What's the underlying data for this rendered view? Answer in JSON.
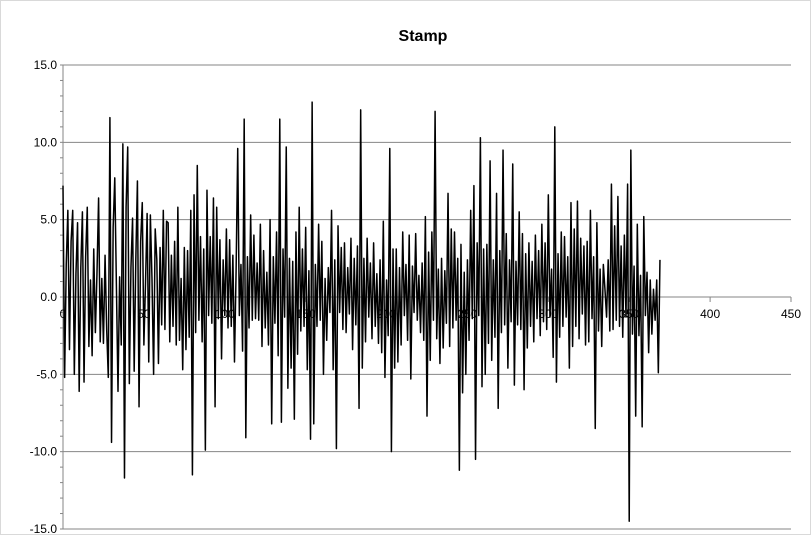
{
  "chart_data": {
    "type": "line",
    "title": "Stamp",
    "xlabel": "",
    "ylabel": "",
    "xlim": [
      0,
      450
    ],
    "ylim": [
      -15,
      15
    ],
    "x_ticks": [
      0,
      50,
      100,
      150,
      200,
      250,
      300,
      350,
      400,
      450
    ],
    "x_tick_labels": [
      "0",
      "50",
      "100",
      "150",
      "200",
      "250",
      "300",
      "350",
      "400",
      "450"
    ],
    "y_ticks": [
      15,
      10,
      5,
      0,
      -5,
      -10,
      -15
    ],
    "y_tick_labels": [
      "15.0",
      "10.0",
      "5.0",
      "0.0",
      "-5.0",
      "-10.0",
      "-15.0"
    ],
    "grid": "horizontal",
    "legend": "none",
    "line_color": "#000000",
    "series": [
      {
        "x_start": 0,
        "x_step": 1,
        "values": [
          7.2,
          -5.2,
          2.1,
          5.6,
          -3.4,
          3.6,
          5.6,
          -5.0,
          1.5,
          4.8,
          -6.1,
          1.9,
          5.5,
          -5.5,
          2.6,
          5.8,
          -3.2,
          1.1,
          -3.8,
          3.1,
          -2.3,
          1.5,
          6.4,
          -2.9,
          1.2,
          -3.0,
          2.7,
          -2.1,
          -5.2,
          11.6,
          -9.4,
          4.5,
          7.7,
          0.8,
          -6.1,
          1.3,
          -3.1,
          9.9,
          -11.7,
          5.8,
          9.7,
          -5.6,
          1.9,
          5.1,
          -4.8,
          2.4,
          7.5,
          -7.1,
          3.6,
          6.1,
          -3.1,
          0.9,
          5.4,
          -4.2,
          5.3,
          1.2,
          -5.0,
          4.4,
          2.4,
          -4.3,
          3.2,
          -1.8,
          5.6,
          -2.1,
          4.9,
          4.8,
          -2.9,
          2.7,
          -1.9,
          3.6,
          -3.1,
          5.8,
          -2.8,
          1.2,
          -4.7,
          3.2,
          -3.4,
          3.0,
          -2.6,
          5.6,
          -11.5,
          6.6,
          -2.3,
          8.5,
          -1.5,
          3.9,
          -2.9,
          3.1,
          -9.9,
          6.9,
          -1.2,
          3.9,
          -1.7,
          6.4,
          -7.1,
          5.8,
          -1.4,
          3.7,
          -4.0,
          2.4,
          -1.2,
          4.4,
          -2.0,
          3.7,
          -1.9,
          2.7,
          -4.2,
          1.7,
          9.6,
          -1.2,
          2.1,
          -3.5,
          11.5,
          -9.1,
          2.6,
          -2.0,
          5.3,
          -1.5,
          4.0,
          -1.4,
          2.2,
          -1.5,
          4.7,
          -3.2,
          3.0,
          -2.0,
          1.6,
          -3.1,
          5.0,
          -8.2,
          2.6,
          -1.7,
          4.2,
          -3.8,
          11.5,
          -8.1,
          3.1,
          -1.3,
          9.7,
          -5.9,
          2.5,
          -4.6,
          2.3,
          -7.9,
          4.2,
          -3.7,
          5.8,
          -2.2,
          3.1,
          -1.9,
          4.5,
          -4.7,
          1.7,
          -9.2,
          12.6,
          -8.2,
          2.1,
          -1.9,
          4.7,
          -1.5,
          3.6,
          -5.0,
          1.2,
          -2.8,
          1.9,
          -1.0,
          5.6,
          -4.7,
          2.4,
          -9.8,
          4.6,
          -1.0,
          3.2,
          -2.1,
          3.5,
          -2.3,
          1.9,
          -1.1,
          3.8,
          -3.4,
          2.5,
          -1.8,
          3.3,
          -7.2,
          12.1,
          -4.6,
          2.5,
          -2.9,
          3.8,
          -1.3,
          2.2,
          -2.7,
          3.5,
          -1.9,
          1.5,
          -3.0,
          2.4,
          -3.6,
          4.9,
          -5.2,
          1.1,
          -2.5,
          9.6,
          -10.0,
          3.1,
          -4.6,
          3.1,
          -4.2,
          1.9,
          -3.1,
          4.2,
          -1.2,
          2.1,
          -2.8,
          4.0,
          -5.3,
          2.0,
          -1.0,
          4.1,
          -1.5,
          1.4,
          -2.3,
          2.2,
          -2.8,
          5.2,
          -7.7,
          2.9,
          -4.1,
          4.2,
          -1.5,
          12.0,
          -2.7,
          1.8,
          -4.3,
          2.5,
          -3.3,
          1.7,
          -1.7,
          6.7,
          -3.2,
          4.4,
          -2.0,
          4.2,
          -1.5,
          2.5,
          -11.2,
          3.4,
          -6.2,
          1.6,
          -5.0,
          2.4,
          -2.8,
          5.6,
          -1.4,
          7.2,
          -10.5,
          3.5,
          -1.2,
          10.3,
          -5.8,
          3.1,
          -5.0,
          3.4,
          -3.0,
          8.8,
          -4.1,
          2.4,
          -2.6,
          6.7,
          -7.2,
          3.0,
          -2.3,
          9.5,
          -1.8,
          4.1,
          -4.6,
          2.4,
          -1.6,
          8.6,
          -5.7,
          2.3,
          -1.8,
          5.5,
          -2.1,
          4.1,
          -6.0,
          2.8,
          -3.3,
          3.5,
          -1.9,
          2.3,
          -2.9,
          4.0,
          -1.4,
          3.0,
          -2.5,
          4.7,
          -1.6,
          3.5,
          -2.1,
          6.6,
          -1.3,
          1.8,
          -3.9,
          11.0,
          -5.5,
          2.8,
          -2.6,
          4.2,
          -1.9,
          3.9,
          -1.3,
          2.6,
          -4.6,
          6.1,
          -3.2,
          4.4,
          -1.9,
          6.2,
          -2.7,
          3.8,
          -1.1,
          3.3,
          -3.1,
          3.6,
          -2.9,
          5.6,
          -1.4,
          2.6,
          -8.5,
          4.8,
          -2.2,
          1.8,
          -3.2,
          2.1,
          0.5,
          -1.3,
          2.4,
          -2.2,
          7.3,
          -2.1,
          4.6,
          -1.5,
          6.5,
          -1.9,
          3.3,
          -2.6,
          4.0,
          -1.3,
          7.3,
          -14.5,
          9.5,
          -2.4,
          2.0,
          -7.7,
          4.7,
          -2.5,
          1.4,
          -8.4,
          5.2,
          -1.2,
          1.6,
          -3.6,
          1.1,
          -2.4,
          0.5,
          -1.5,
          1.1,
          -4.9,
          2.4
        ]
      }
    ]
  }
}
